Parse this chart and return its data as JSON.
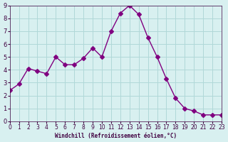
{
  "x": [
    0,
    1,
    2,
    3,
    4,
    5,
    6,
    7,
    8,
    9,
    10,
    11,
    12,
    13,
    14,
    15,
    16,
    17,
    18,
    19,
    20,
    21,
    22,
    23
  ],
  "y": [
    2.4,
    2.9,
    4.1,
    3.9,
    3.7,
    5.0,
    4.4,
    4.4,
    4.9,
    5.7,
    5.0,
    7.0,
    8.4,
    9.0,
    8.3,
    6.5,
    5.0,
    3.3,
    1.8,
    1.0,
    0.8,
    0.5,
    0.5,
    0.5
  ],
  "line_color": "#800080",
  "marker": "D",
  "marker_size": 3,
  "bg_color": "#d8f0f0",
  "grid_color": "#b0d8d8",
  "xlabel": "Windchill (Refroidissement éolien,°C)",
  "ylabel": "",
  "xlim": [
    0,
    23
  ],
  "ylim": [
    0,
    9
  ],
  "xticks": [
    0,
    1,
    2,
    3,
    4,
    5,
    6,
    7,
    8,
    9,
    10,
    11,
    12,
    13,
    14,
    15,
    16,
    17,
    18,
    19,
    20,
    21,
    22,
    23
  ],
  "yticks": [
    0,
    1,
    2,
    3,
    4,
    5,
    6,
    7,
    8,
    9
  ],
  "axis_label_color": "#400040",
  "tick_color": "#400040"
}
